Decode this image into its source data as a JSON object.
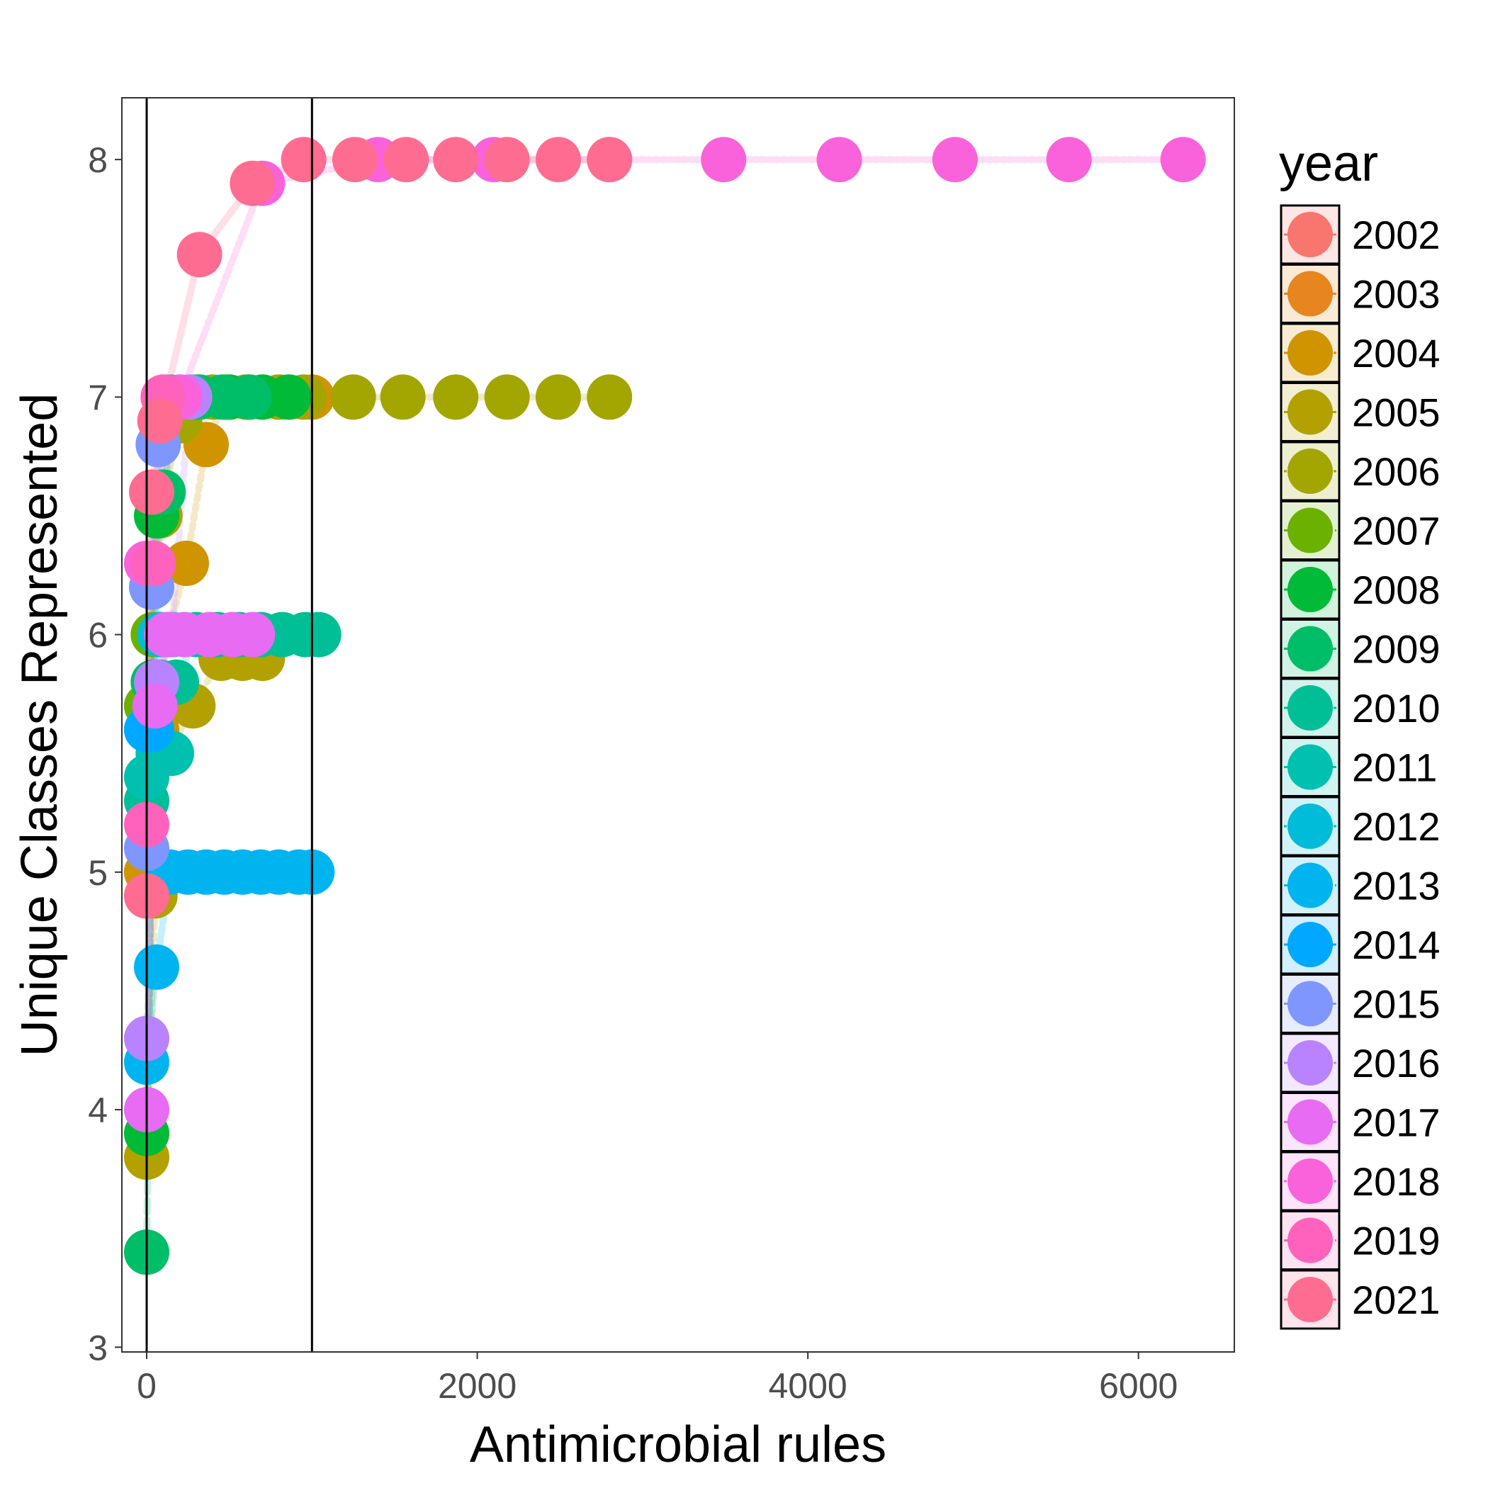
{
  "chart_data": {
    "type": "scatter",
    "xlabel": "Antimicrobial rules",
    "ylabel": "Unique Classes Represented",
    "xlim": [
      -150,
      6580
    ],
    "ylim": [
      2.98,
      8.26
    ],
    "x_ticks": [
      0,
      2000,
      4000,
      6000
    ],
    "x_tick_labels": [
      "0",
      "2000",
      "4000",
      "6000"
    ],
    "y_ticks": [
      3,
      4,
      5,
      6,
      7,
      8
    ],
    "y_tick_labels": [
      "3",
      "4",
      "5",
      "6",
      "7",
      "8"
    ],
    "grid": false,
    "legend_position": "right",
    "vertical_reference_lines": [
      0,
      1000
    ],
    "legend": {
      "title": "year",
      "entries": [
        "2002",
        "2003",
        "2004",
        "2005",
        "2006",
        "2007",
        "2008",
        "2009",
        "2010",
        "2011",
        "2012",
        "2013",
        "2014",
        "2015",
        "2016",
        "2017",
        "2018",
        "2019",
        "2021"
      ]
    },
    "series": [
      {
        "name": "2002",
        "color": "#F8766D",
        "x": [
          0,
          20,
          50
        ],
        "y": [
          4.9,
          5.0,
          5.0
        ]
      },
      {
        "name": "2003",
        "color": "#E7851E",
        "x": [
          0,
          30,
          60
        ],
        "y": [
          5.0,
          5.0,
          5.0
        ]
      },
      {
        "name": "2004",
        "color": "#D09400",
        "x": [
          0,
          60,
          130,
          240,
          360,
          480,
          620,
          800,
          1000
        ],
        "y": [
          5.0,
          5.6,
          6.0,
          6.3,
          6.8,
          7.0,
          7.0,
          7.0,
          7.0
        ]
      },
      {
        "name": "2005",
        "color": "#B2A100",
        "x": [
          0,
          50,
          130,
          280,
          450,
          580,
          700
        ],
        "y": [
          3.8,
          4.9,
          5.5,
          5.7,
          5.9,
          5.9,
          5.9
        ]
      },
      {
        "name": "2006",
        "color": "#A3A500",
        "x": [
          0,
          80,
          200,
          400,
          600,
          800,
          950,
          1250,
          1550,
          1870,
          2180,
          2490,
          2800
        ],
        "y": [
          5.7,
          6.5,
          6.9,
          7.0,
          7.0,
          7.0,
          7.0,
          7.0,
          7.0,
          7.0,
          7.0,
          7.0,
          7.0
        ]
      },
      {
        "name": "2007",
        "color": "#6BB100",
        "x": [
          0,
          40,
          90
        ],
        "y": [
          5.7,
          6.0,
          6.0
        ]
      },
      {
        "name": "2008",
        "color": "#00BA38",
        "x": [
          0,
          60,
          140,
          300,
          500,
          700,
          860
        ],
        "y": [
          3.9,
          6.5,
          7.0,
          7.0,
          7.0,
          7.0,
          7.0
        ]
      },
      {
        "name": "2009",
        "color": "#00BE67",
        "x": [
          0,
          40,
          100,
          200,
          320,
          460,
          620
        ],
        "y": [
          3.4,
          5.8,
          6.6,
          7.0,
          7.0,
          7.0,
          7.0
        ]
      },
      {
        "name": "2010",
        "color": "#00BF96",
        "x": [
          0,
          80,
          180,
          300,
          430,
          560,
          690,
          820,
          960,
          1040
        ],
        "y": [
          5.3,
          5.8,
          5.8,
          6.0,
          6.0,
          6.0,
          6.0,
          6.0,
          6.0,
          6.0
        ]
      },
      {
        "name": "2011",
        "color": "#00C0AF",
        "x": [
          0,
          70,
          150
        ],
        "y": [
          5.4,
          5.5,
          5.5
        ]
      },
      {
        "name": "2012",
        "color": "#00BCD8",
        "x": [
          0,
          80,
          160
        ],
        "y": [
          5.6,
          6.0,
          6.0
        ]
      },
      {
        "name": "2013",
        "color": "#00B4EF",
        "x": [
          0,
          60,
          140,
          250,
          360,
          470,
          580,
          690,
          800,
          920,
          1000
        ],
        "y": [
          4.2,
          4.6,
          5.0,
          5.0,
          5.0,
          5.0,
          5.0,
          5.0,
          5.0,
          5.0,
          5.0
        ]
      },
      {
        "name": "2014",
        "color": "#00A9FF",
        "x": [
          0,
          30
        ],
        "y": [
          5.6,
          5.6
        ]
      },
      {
        "name": "2015",
        "color": "#7F96FF",
        "x": [
          0,
          30,
          70,
          120
        ],
        "y": [
          5.1,
          6.2,
          6.8,
          7.0
        ]
      },
      {
        "name": "2016",
        "color": "#B983FF",
        "x": [
          0,
          60,
          150,
          260
        ],
        "y": [
          4.3,
          5.8,
          6.0,
          7.0
        ]
      },
      {
        "name": "2017",
        "color": "#E76BF3",
        "x": [
          0,
          50,
          120,
          230,
          380,
          520,
          640
        ],
        "y": [
          4.0,
          5.7,
          6.0,
          6.0,
          6.0,
          6.0,
          6.0
        ]
      },
      {
        "name": "2018",
        "color": "#FA62DB",
        "x": [
          0,
          200,
          700,
          1400,
          2100,
          2800,
          3490,
          4190,
          4890,
          5580,
          6270
        ],
        "y": [
          6.3,
          7.0,
          7.9,
          8.0,
          8.0,
          8.0,
          8.0,
          8.0,
          8.0,
          8.0,
          8.0
        ]
      },
      {
        "name": "2019",
        "color": "#FF62BC",
        "x": [
          0,
          40,
          100
        ],
        "y": [
          5.2,
          6.3,
          7.0
        ]
      },
      {
        "name": "2021",
        "color": "#FF6C91",
        "x": [
          0,
          30,
          80,
          320,
          640,
          950,
          1260,
          1570,
          1870,
          2180,
          2490,
          2800
        ],
        "y": [
          4.9,
          6.6,
          6.9,
          7.6,
          7.9,
          8.0,
          8.0,
          8.0,
          8.0,
          8.0,
          8.0,
          8.0
        ]
      }
    ]
  }
}
